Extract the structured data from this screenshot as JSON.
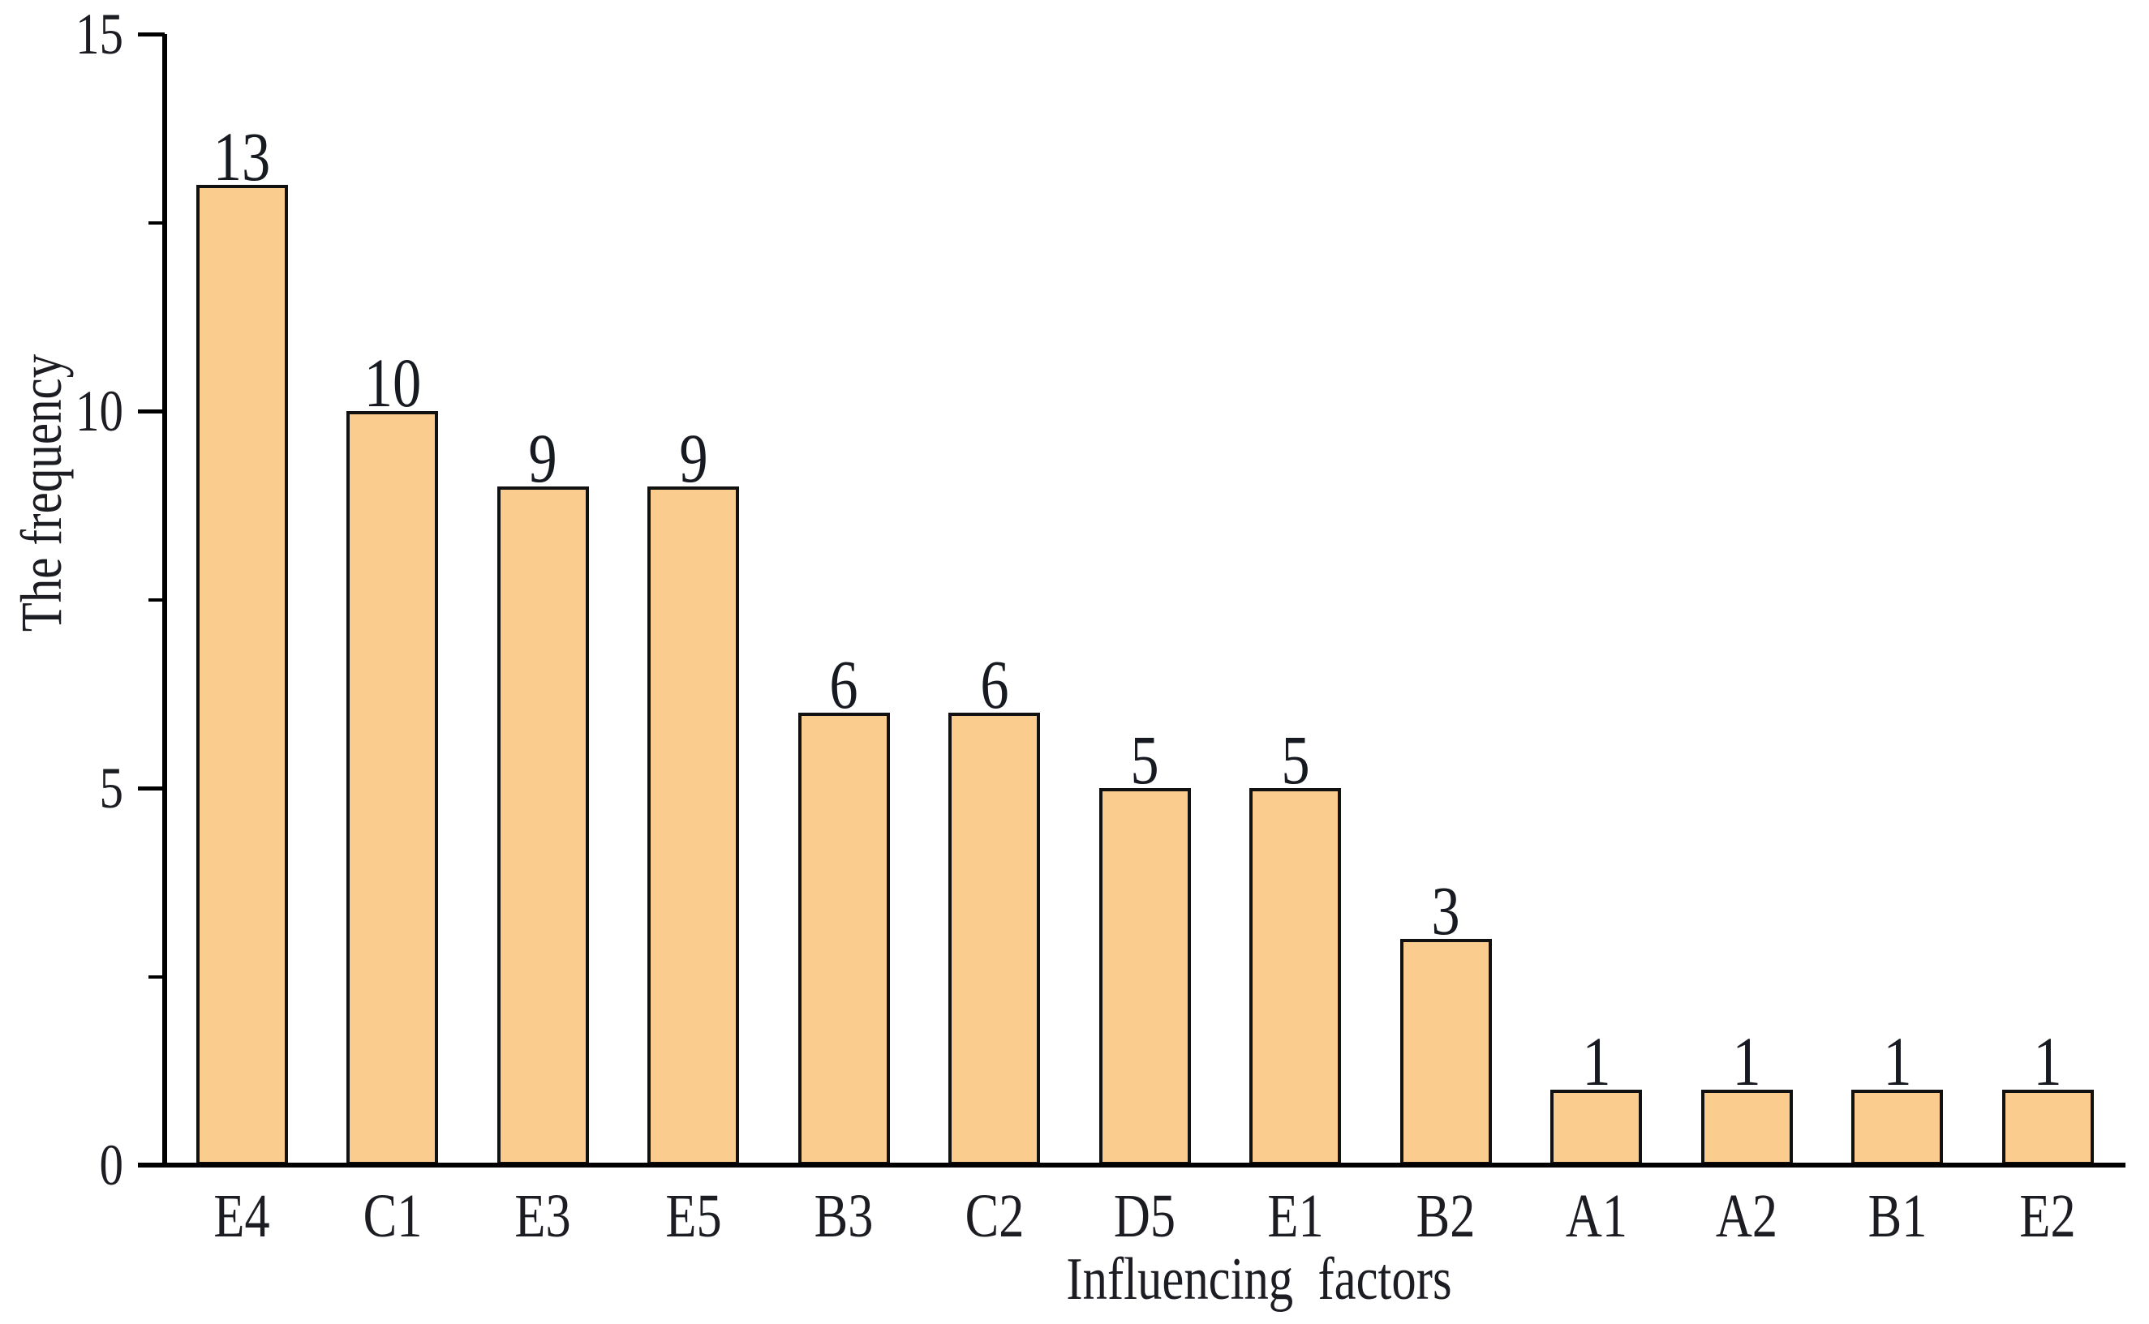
{
  "figure": {
    "background": "#ffffff",
    "axis_color": "#000000",
    "text_color": "#1b1d22"
  },
  "chart_data": {
    "type": "bar",
    "title": "",
    "categories": [
      "E4",
      "C1",
      "E3",
      "E5",
      "B3",
      "C2",
      "D5",
      "E1",
      "B2",
      "A1",
      "A2",
      "B1",
      "E2"
    ],
    "values": [
      13,
      10,
      9,
      9,
      6,
      6,
      5,
      5,
      3,
      1,
      1,
      1,
      1
    ],
    "xlabel": "Influencing  factors",
    "ylabel": "The frequency",
    "ylim": [
      0,
      15
    ],
    "yticks_major": [
      {
        "value": 0,
        "label": "0"
      },
      {
        "value": 5,
        "label": "5"
      },
      {
        "value": 10,
        "label": "10"
      },
      {
        "value": 15,
        "label": "15"
      }
    ],
    "yticks_minor": [
      2.5,
      7.5,
      12.5
    ],
    "grid": false,
    "legend": "none",
    "bar_color": "#FACD8E",
    "bar_edge_color": "#111111"
  }
}
